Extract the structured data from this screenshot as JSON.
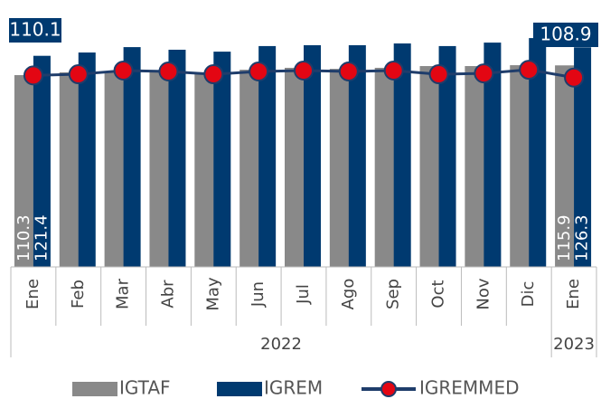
{
  "chart_data": {
    "type": "bar_line",
    "category_groups": [
      {
        "label": "2022",
        "categories": [
          "Ene",
          "Feb",
          "Mar",
          "Abr",
          "May",
          "Jun",
          "Jul",
          "Ago",
          "Sep",
          "Oct",
          "Nov",
          "Dic"
        ]
      },
      {
        "label": "2023",
        "categories": [
          "Ene"
        ]
      }
    ],
    "ylim": [
      0,
      153.5
    ],
    "series": [
      {
        "name": "IGTAF",
        "type": "bar",
        "color": "#898989",
        "values": [
          110.3,
          111.9,
          112.4,
          112.9,
          111.9,
          113.4,
          114.5,
          113.9,
          114.5,
          115.5,
          115.5,
          116.0,
          115.9
        ],
        "value_labels": [
          "110.3",
          null,
          null,
          null,
          null,
          null,
          null,
          null,
          null,
          null,
          null,
          null,
          "115.9"
        ]
      },
      {
        "name": "IGREM",
        "type": "bar",
        "color": "#003a70",
        "values": [
          121.4,
          123.3,
          126.4,
          124.9,
          123.8,
          127.0,
          127.5,
          127.5,
          128.5,
          127.0,
          129.0,
          131.6,
          126.3
        ],
        "value_labels": [
          "121.4",
          null,
          null,
          null,
          null,
          null,
          null,
          null,
          null,
          null,
          null,
          null,
          "126.3"
        ]
      },
      {
        "name": "IGREMMED",
        "type": "line",
        "color": "#1f3d6b",
        "marker_color": "#e30613",
        "values": [
          110.1,
          110.8,
          112.9,
          112.4,
          110.8,
          112.4,
          112.9,
          112.4,
          112.9,
          110.8,
          111.3,
          113.4,
          108.9
        ],
        "value_labels": [
          "110.1",
          null,
          null,
          null,
          null,
          null,
          null,
          null,
          null,
          null,
          null,
          null,
          "108.9"
        ]
      }
    ],
    "legend": "bottom"
  }
}
